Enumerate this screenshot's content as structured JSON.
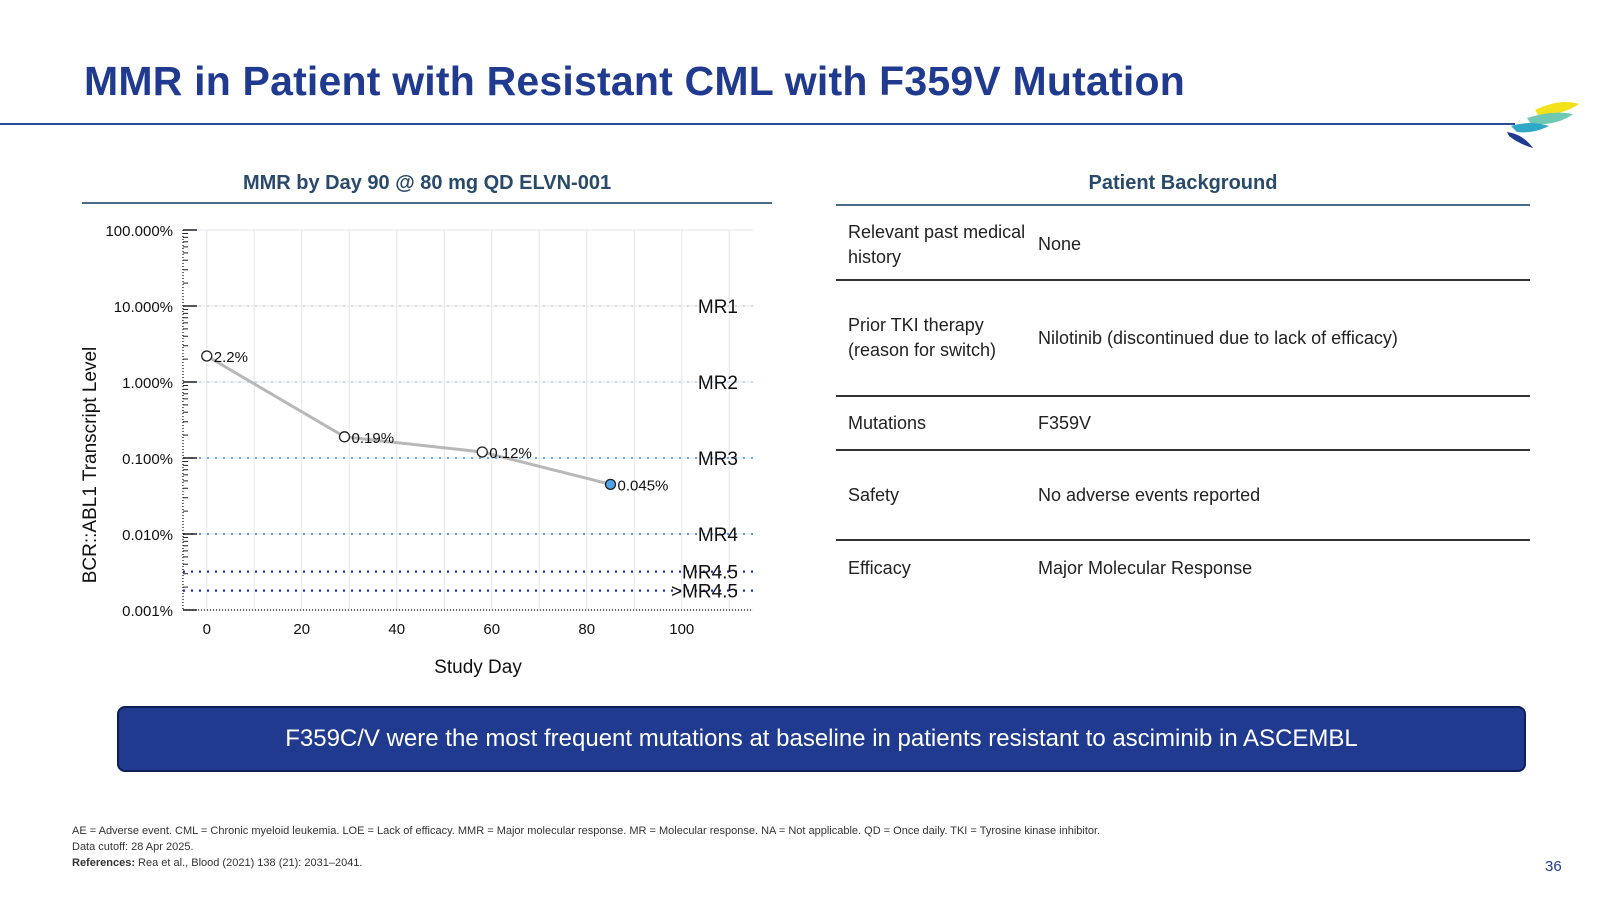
{
  "slide": {
    "title": "MMR in Patient with Resistant CML with F359V Mutation",
    "page_number": "36",
    "colors": {
      "title": "#1f3a8f",
      "callout_bg": "#1f3a8f",
      "point_fill": "#4fa3e8",
      "line": "#b8b8b8"
    }
  },
  "left": {
    "heading": "MMR by Day 90 @ 80 mg QD ELVN-001"
  },
  "right": {
    "heading": "Patient Background",
    "rows": [
      {
        "label": "Relevant past medical history",
        "value": "None"
      },
      {
        "label": "Prior TKI therapy (reason for switch)",
        "value": "Nilotinib (discontinued due to lack of efficacy)"
      },
      {
        "label": "Mutations",
        "value": "F359V"
      },
      {
        "label": "Safety",
        "value": "No adverse events reported"
      },
      {
        "label": "Efficacy",
        "value": "Major Molecular Response"
      }
    ]
  },
  "callout": {
    "text": "F359C/V were the most frequent mutations at baseline in patients resistant to asciminib in ASCEMBL"
  },
  "footnotes": {
    "abbreviations": "AE = Adverse event. CML = Chronic myeloid leukemia. LOE = Lack of efficacy. MMR = Major molecular response. MR = Molecular response. NA = Not applicable. QD = Once daily. TKI = Tyrosine kinase inhibitor.",
    "cutoff": "Data cutoff: 28 Apr 2025.",
    "references_label": "References:",
    "references_text": "Rea et al., Blood (2021) 138 (21): 2031–2041."
  },
  "chart_data": {
    "type": "line",
    "title": "MMR by Day 90 @ 80 mg QD ELVN-001",
    "xlabel": "Study Day",
    "ylabel": "BCR::ABL1 Transcript Level",
    "y_scale": "log",
    "xlim": [
      -5,
      115
    ],
    "ylim": [
      0.001,
      100
    ],
    "x_ticks": [
      0,
      20,
      40,
      60,
      80,
      100
    ],
    "y_ticks": [
      {
        "value": 100,
        "label": "100.000%"
      },
      {
        "value": 10,
        "label": "10.000%"
      },
      {
        "value": 1,
        "label": "1.000%"
      },
      {
        "value": 0.1,
        "label": "0.100%"
      },
      {
        "value": 0.01,
        "label": "0.010%"
      },
      {
        "value": 0.001,
        "label": "0.001%"
      }
    ],
    "grid": true,
    "series": [
      {
        "x": [
          0,
          29,
          58,
          85
        ],
        "y": [
          2.2,
          0.19,
          0.12,
          0.045
        ],
        "labels": [
          "2.2%",
          "0.19%",
          "0.12%",
          "0.045%"
        ],
        "filled": [
          false,
          false,
          false,
          true
        ]
      }
    ],
    "reference_lines": [
      {
        "label": "MR1",
        "y": 10,
        "color": "#d0d0d0"
      },
      {
        "label": "MR2",
        "y": 1,
        "color": "#a8d4ee"
      },
      {
        "label": "MR3",
        "y": 0.1,
        "color": "#3a8ee0"
      },
      {
        "label": "MR4",
        "y": 0.01,
        "color": "#2b6fd0"
      },
      {
        "label": "MR4.5",
        "y": 0.0032,
        "color": "#1f2fd0"
      },
      {
        "label": ">MR4.5",
        "y": 0.0018,
        "color": "#1f2fd0"
      }
    ]
  }
}
